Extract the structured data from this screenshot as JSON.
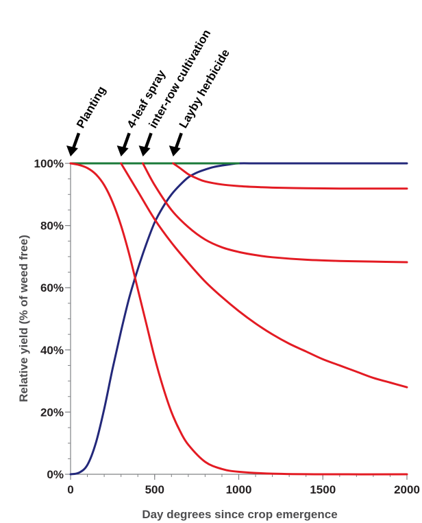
{
  "chart_data": {
    "type": "line",
    "title": "",
    "xlabel": "Day degrees since crop emergence",
    "ylabel": "Relative yield (% of weed free)",
    "xlim": [
      0,
      2000
    ],
    "ylim": [
      0,
      100
    ],
    "x_ticks": [
      0,
      500,
      1000,
      1500,
      2000
    ],
    "x_tick_labels": [
      "0",
      "500",
      "1000",
      "1500",
      "2000"
    ],
    "y_ticks": [
      0,
      20,
      40,
      60,
      80,
      100
    ],
    "y_tick_labels": [
      "0%",
      "20%",
      "40%",
      "60%",
      "80%",
      "100%"
    ],
    "grid": false,
    "legend": "none",
    "events": [
      {
        "label": "Planting",
        "x": 0
      },
      {
        "label": "4-leaf spray",
        "x": 300
      },
      {
        "label": "inter-row cultivation",
        "x": 430
      },
      {
        "label": "Layby herbicide",
        "x": 610
      }
    ],
    "series": [
      {
        "color": "#23287a",
        "x": [
          0,
          50,
          100,
          150,
          200,
          250,
          300,
          350,
          400,
          450,
          500,
          550,
          600,
          650,
          700,
          750,
          800,
          850,
          900,
          950,
          1000,
          1100,
          1200,
          1500,
          2000
        ],
        "y": [
          0,
          0.5,
          3,
          10,
          21,
          34,
          46,
          57,
          66,
          74,
          81,
          86,
          90,
          93,
          95.5,
          97,
          98,
          98.8,
          99.3,
          99.7,
          100,
          100,
          100,
          100,
          100
        ]
      },
      {
        "color": "#1b7a3a",
        "x": [
          0,
          1000
        ],
        "y": [
          100,
          100
        ]
      },
      {
        "color": "#e31b23",
        "x": [
          0,
          50,
          100,
          150,
          200,
          250,
          300,
          350,
          400,
          450,
          500,
          550,
          600,
          650,
          700,
          800,
          900,
          1000,
          1200,
          1500,
          2000
        ],
        "y": [
          100,
          99.5,
          98.5,
          96.5,
          93,
          87.5,
          80,
          70.5,
          59.5,
          48.5,
          37.5,
          28,
          20,
          14,
          9.5,
          4,
          1.7,
          0.8,
          0.2,
          0,
          0
        ]
      },
      {
        "color": "#e31b23",
        "x": [
          300,
          400,
          500,
          600,
          700,
          800,
          900,
          1000,
          1100,
          1200,
          1300,
          1400,
          1500,
          1600,
          1700,
          1800,
          1900,
          2000
        ],
        "y": [
          100,
          91,
          82,
          74.5,
          68,
          62,
          57,
          52.5,
          48.5,
          45,
          42,
          39.5,
          37,
          35,
          33,
          31,
          29.5,
          28
        ]
      },
      {
        "color": "#e31b23",
        "x": [
          430,
          500,
          600,
          700,
          800,
          900,
          1000,
          1100,
          1200,
          1400,
          1600,
          1800,
          2000
        ],
        "y": [
          100,
          93,
          85,
          79.5,
          75.5,
          73,
          71.5,
          70.5,
          69.8,
          69,
          68.6,
          68.4,
          68.2
        ]
      },
      {
        "color": "#e31b23",
        "x": [
          610,
          650,
          700,
          750,
          800,
          900,
          1000,
          1100,
          1200,
          1400,
          1600,
          1800,
          2000
        ],
        "y": [
          100,
          98.5,
          96.5,
          95.2,
          94.2,
          93.2,
          92.7,
          92.4,
          92.2,
          92,
          91.9,
          91.9,
          91.9
        ]
      }
    ]
  }
}
